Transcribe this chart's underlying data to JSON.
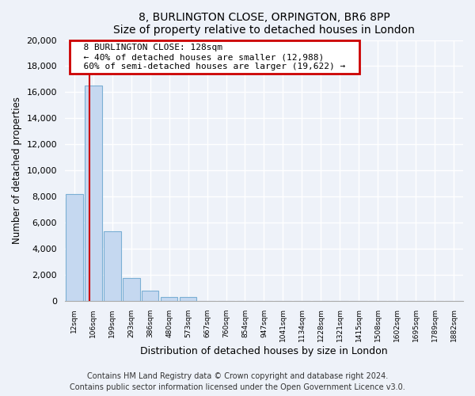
{
  "title": "8, BURLINGTON CLOSE, ORPINGTON, BR6 8PP",
  "subtitle": "Size of property relative to detached houses in London",
  "xlabel": "Distribution of detached houses by size in London",
  "ylabel": "Number of detached properties",
  "bar_labels": [
    "12sqm",
    "106sqm",
    "199sqm",
    "293sqm",
    "386sqm",
    "480sqm",
    "573sqm",
    "667sqm",
    "760sqm",
    "854sqm",
    "947sqm",
    "1041sqm",
    "1134sqm",
    "1228sqm",
    "1321sqm",
    "1415sqm",
    "1508sqm",
    "1602sqm",
    "1695sqm",
    "1789sqm",
    "1882sqm"
  ],
  "bar_values": [
    8200,
    16500,
    5300,
    1750,
    750,
    300,
    270,
    0,
    0,
    0,
    0,
    0,
    0,
    0,
    0,
    0,
    0,
    0,
    0,
    0,
    0
  ],
  "bar_color": "#c5d8f0",
  "bar_edge_color": "#7bafd4",
  "annotation_title": "8 BURLINGTON CLOSE: 128sqm",
  "annotation_line1": "← 40% of detached houses are smaller (12,988)",
  "annotation_line2": "60% of semi-detached houses are larger (19,622) →",
  "annotation_box_color": "#ffffff",
  "annotation_box_edge": "#cc0000",
  "property_line_color": "#cc0000",
  "ylim": [
    0,
    20000
  ],
  "yticks": [
    0,
    2000,
    4000,
    6000,
    8000,
    10000,
    12000,
    14000,
    16000,
    18000,
    20000
  ],
  "footnote1": "Contains HM Land Registry data © Crown copyright and database right 2024.",
  "footnote2": "Contains public sector information licensed under the Open Government Licence v3.0.",
  "bg_color": "#eef2f9",
  "grid_color": "#ffffff"
}
